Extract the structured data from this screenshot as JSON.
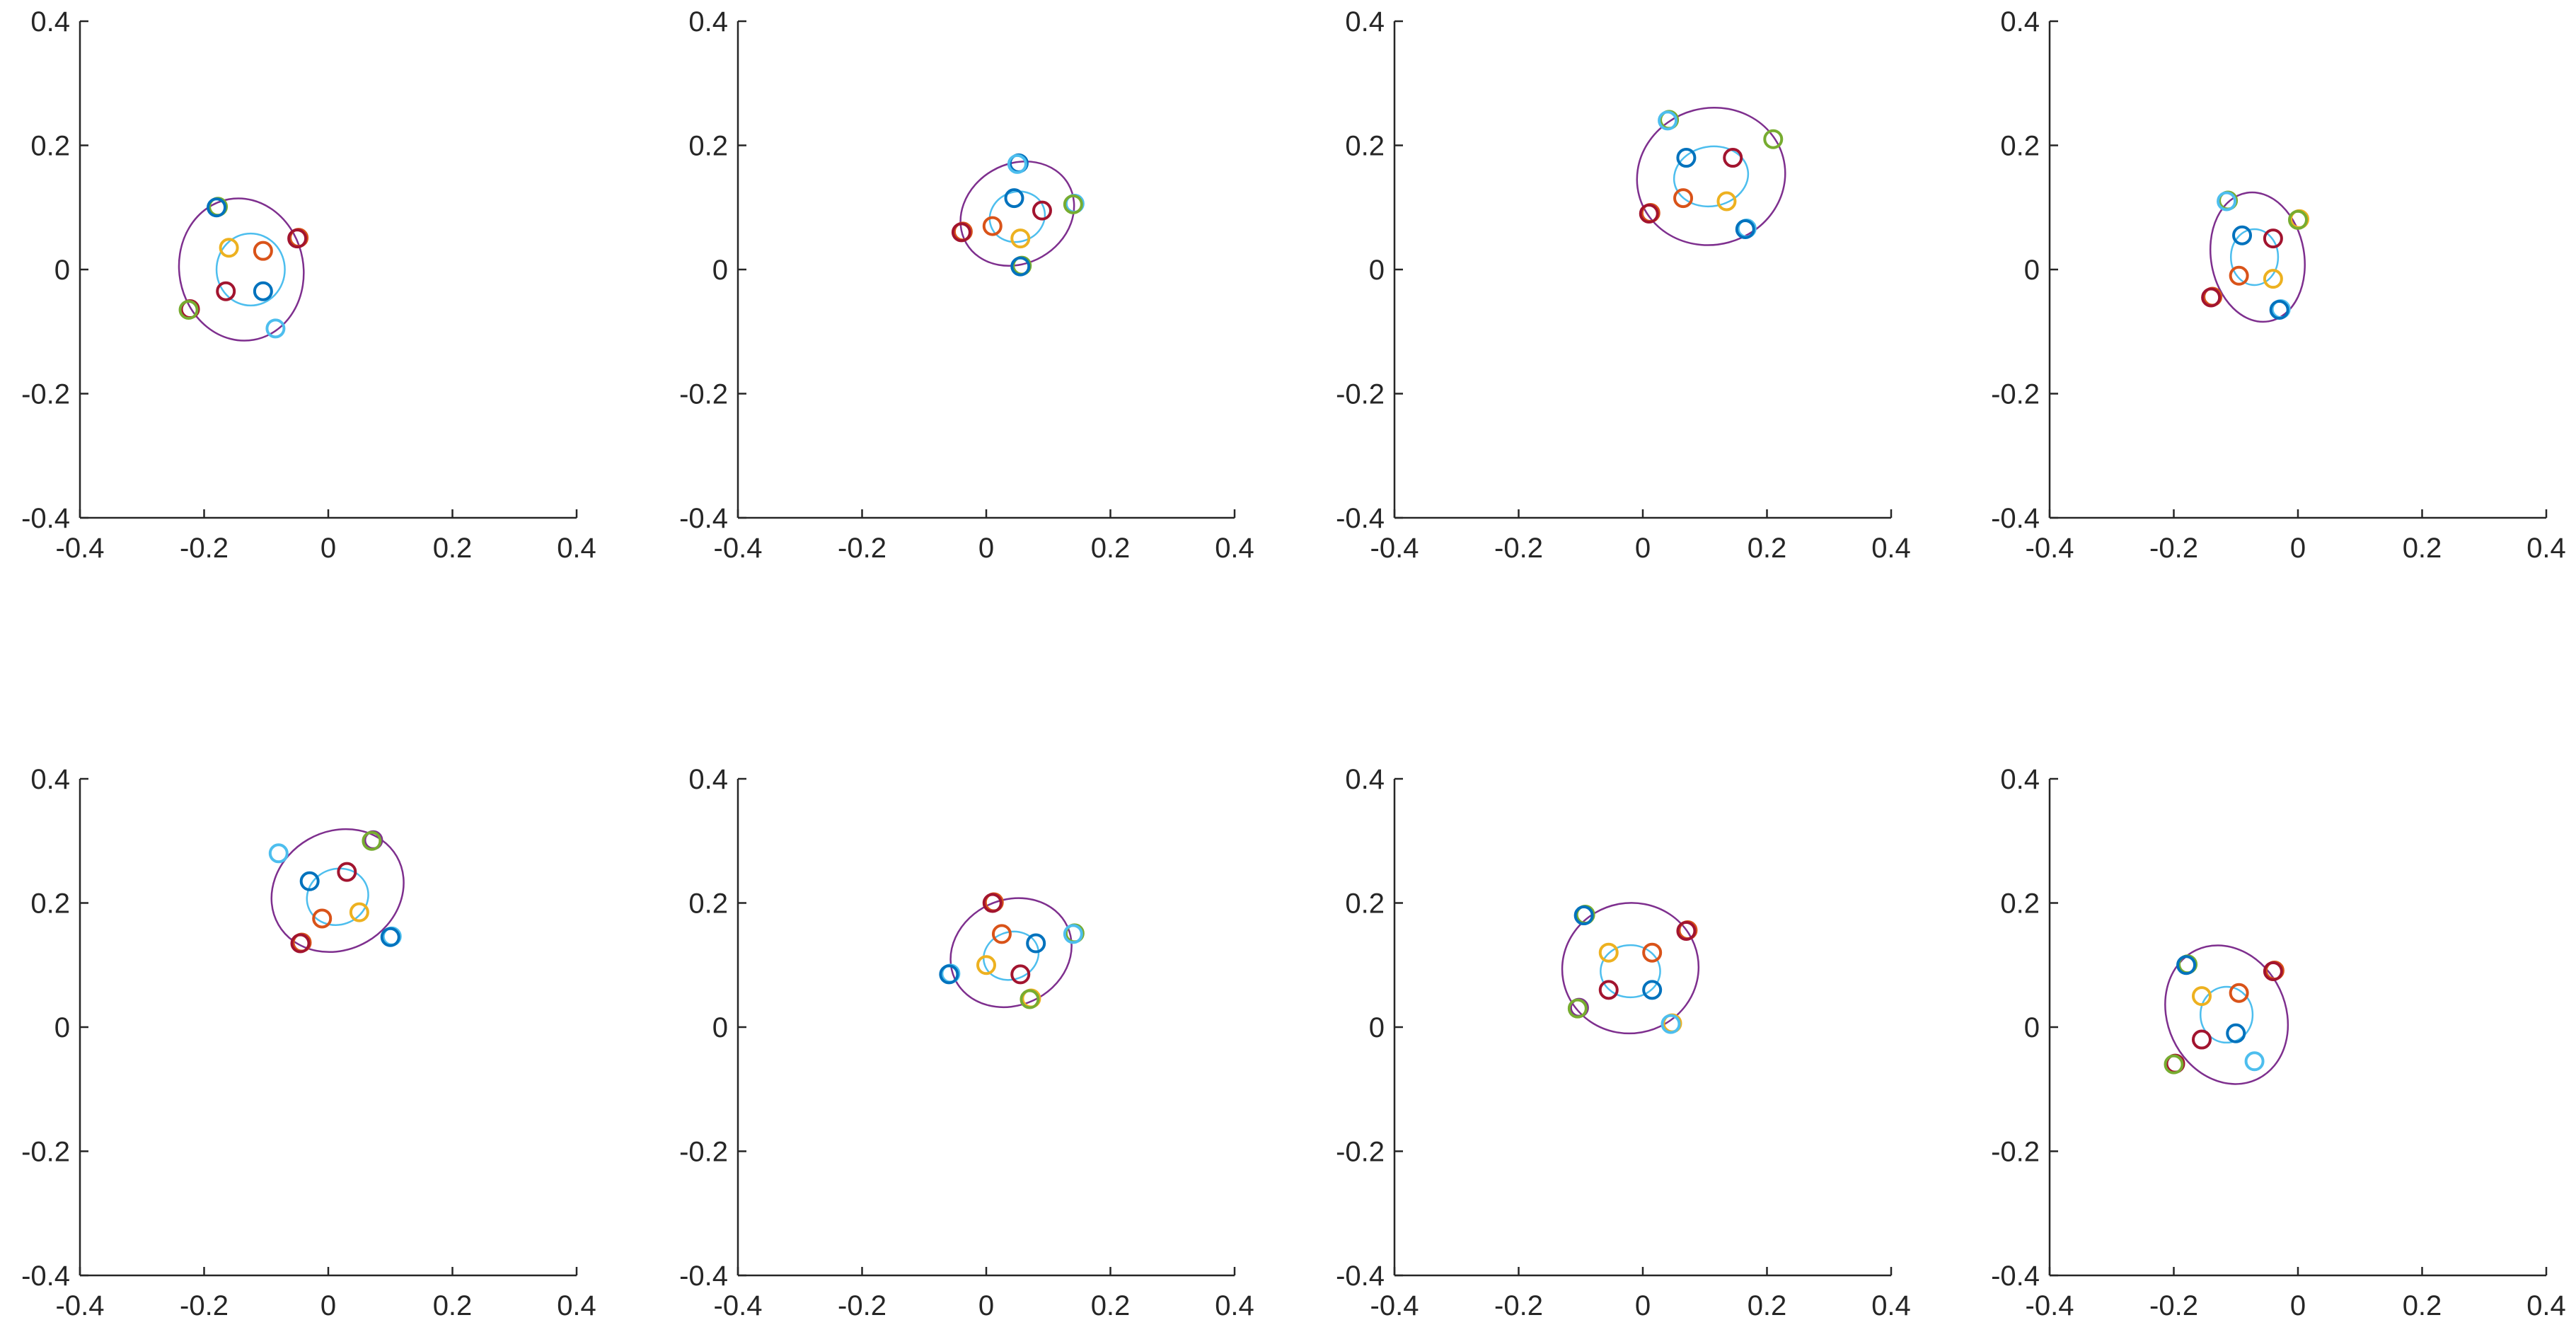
{
  "chart_data": [
    {
      "type": "scatter",
      "title": "",
      "xlabel": "",
      "ylabel": "",
      "xlim": [
        -0.4,
        0.4
      ],
      "ylim": [
        -0.4,
        0.4
      ],
      "xticks": [
        "-0.4",
        "-0.2",
        "0",
        "0.2",
        "0.4"
      ],
      "yticks": [
        "-0.4",
        "-0.2",
        "0",
        "0.2",
        "0.4"
      ],
      "grid": false,
      "ellipses": [
        {
          "cx": -0.14,
          "cy": 0.0,
          "rx": 0.1,
          "ry": 0.115,
          "angle_deg": 10,
          "color": "#7E2F8E"
        },
        {
          "cx": -0.125,
          "cy": 0.0,
          "rx": 0.055,
          "ry": 0.058,
          "angle_deg": 0,
          "color": "#4DBEEE"
        }
      ],
      "markers": [
        {
          "x": -0.18,
          "y": 0.1,
          "color": "#0072BD",
          "color2": "#77AC30"
        },
        {
          "x": -0.05,
          "y": 0.05,
          "color": "#A2142F",
          "color2": "#D95319"
        },
        {
          "x": -0.225,
          "y": -0.065,
          "color": "#77AC30",
          "color2": "#A2142F"
        },
        {
          "x": -0.085,
          "y": -0.095,
          "color": "#4DBEEE"
        },
        {
          "x": -0.16,
          "y": 0.035,
          "color": "#EDB120"
        },
        {
          "x": -0.105,
          "y": 0.03,
          "color": "#D95319"
        },
        {
          "x": -0.165,
          "y": -0.035,
          "color": "#A2142F"
        },
        {
          "x": -0.105,
          "y": -0.035,
          "color": "#0072BD"
        }
      ]
    },
    {
      "type": "scatter",
      "title": "",
      "xlabel": "",
      "ylabel": "",
      "xlim": [
        -0.4,
        0.4
      ],
      "ylim": [
        -0.4,
        0.4
      ],
      "xticks": [
        "-0.4",
        "-0.2",
        "0",
        "0.2",
        "0.4"
      ],
      "yticks": [
        "-0.4",
        "-0.2",
        "0",
        "0.2",
        "0.4"
      ],
      "grid": false,
      "ellipses": [
        {
          "cx": 0.05,
          "cy": 0.09,
          "rx": 0.095,
          "ry": 0.08,
          "angle_deg": 30,
          "color": "#7E2F8E"
        },
        {
          "cx": 0.05,
          "cy": 0.085,
          "rx": 0.045,
          "ry": 0.04,
          "angle_deg": 20,
          "color": "#4DBEEE"
        }
      ],
      "markers": [
        {
          "x": 0.05,
          "y": 0.17,
          "color": "#4DBEEE",
          "color2": "#0072BD"
        },
        {
          "x": 0.14,
          "y": 0.105,
          "color": "#77AC30",
          "color2": "#4DBEEE"
        },
        {
          "x": -0.04,
          "y": 0.06,
          "color": "#A2142F",
          "color2": "#D95319"
        },
        {
          "x": 0.055,
          "y": 0.005,
          "color": "#0072BD",
          "color2": "#77AC30"
        },
        {
          "x": 0.045,
          "y": 0.115,
          "color": "#0072BD"
        },
        {
          "x": 0.09,
          "y": 0.095,
          "color": "#A2142F"
        },
        {
          "x": 0.01,
          "y": 0.07,
          "color": "#D95319"
        },
        {
          "x": 0.055,
          "y": 0.05,
          "color": "#EDB120"
        }
      ]
    },
    {
      "type": "scatter",
      "title": "",
      "xlabel": "",
      "ylabel": "",
      "xlim": [
        -0.4,
        0.4
      ],
      "ylim": [
        -0.4,
        0.4
      ],
      "xticks": [
        "-0.4",
        "-0.2",
        "0",
        "0.2",
        "0.4"
      ],
      "yticks": [
        "-0.4",
        "-0.2",
        "0",
        "0.2",
        "0.4"
      ],
      "grid": false,
      "ellipses": [
        {
          "cx": 0.11,
          "cy": 0.15,
          "rx": 0.12,
          "ry": 0.11,
          "angle_deg": 15,
          "color": "#7E2F8E"
        },
        {
          "cx": 0.11,
          "cy": 0.15,
          "rx": 0.06,
          "ry": 0.048,
          "angle_deg": 10,
          "color": "#4DBEEE"
        }
      ],
      "markers": [
        {
          "x": 0.04,
          "y": 0.24,
          "color": "#4DBEEE",
          "color2": "#77AC30"
        },
        {
          "x": 0.21,
          "y": 0.21,
          "color": "#77AC30"
        },
        {
          "x": 0.01,
          "y": 0.09,
          "color": "#A2142F",
          "color2": "#D95319"
        },
        {
          "x": 0.165,
          "y": 0.065,
          "color": "#0072BD",
          "color2": "#4DBEEE"
        },
        {
          "x": 0.07,
          "y": 0.18,
          "color": "#0072BD"
        },
        {
          "x": 0.145,
          "y": 0.18,
          "color": "#A2142F"
        },
        {
          "x": 0.065,
          "y": 0.115,
          "color": "#D95319"
        },
        {
          "x": 0.135,
          "y": 0.11,
          "color": "#EDB120"
        }
      ]
    },
    {
      "type": "scatter",
      "title": "",
      "xlabel": "",
      "ylabel": "",
      "xlim": [
        -0.4,
        0.4
      ],
      "ylim": [
        -0.4,
        0.4
      ],
      "xticks": [
        "-0.4",
        "-0.2",
        "0",
        "0.2",
        "0.4"
      ],
      "yticks": [
        "-0.4",
        "-0.2",
        "0",
        "0.2",
        "0.4"
      ],
      "grid": false,
      "ellipses": [
        {
          "cx": -0.065,
          "cy": 0.02,
          "rx": 0.075,
          "ry": 0.105,
          "angle_deg": 10,
          "color": "#7E2F8E"
        },
        {
          "cx": -0.07,
          "cy": 0.02,
          "rx": 0.038,
          "ry": 0.045,
          "angle_deg": 0,
          "color": "#4DBEEE"
        }
      ],
      "markers": [
        {
          "x": -0.115,
          "y": 0.11,
          "color": "#4DBEEE",
          "color2": "#77AC30"
        },
        {
          "x": 0.0,
          "y": 0.08,
          "color": "#77AC30",
          "color2": "#EDB120"
        },
        {
          "x": -0.14,
          "y": -0.045,
          "color": "#A2142F",
          "color2": "#D95319"
        },
        {
          "x": -0.03,
          "y": -0.065,
          "color": "#0072BD",
          "color2": "#4DBEEE"
        },
        {
          "x": -0.09,
          "y": 0.055,
          "color": "#0072BD"
        },
        {
          "x": -0.04,
          "y": 0.05,
          "color": "#A2142F"
        },
        {
          "x": -0.095,
          "y": -0.01,
          "color": "#D95319"
        },
        {
          "x": -0.04,
          "y": -0.015,
          "color": "#EDB120"
        }
      ]
    },
    {
      "type": "scatter",
      "title": "",
      "xlabel": "",
      "ylabel": "",
      "xlim": [
        -0.4,
        0.4
      ],
      "ylim": [
        -0.4,
        0.4
      ],
      "xticks": [
        "-0.4",
        "-0.2",
        "0",
        "0.2",
        "0.4"
      ],
      "yticks": [
        "-0.4",
        "-0.2",
        "0",
        "0.2",
        "0.4"
      ],
      "grid": false,
      "ellipses": [
        {
          "cx": 0.015,
          "cy": 0.22,
          "rx": 0.11,
          "ry": 0.095,
          "angle_deg": 30,
          "color": "#7E2F8E"
        },
        {
          "cx": 0.015,
          "cy": 0.21,
          "rx": 0.05,
          "ry": 0.045,
          "angle_deg": 20,
          "color": "#4DBEEE"
        }
      ],
      "markers": [
        {
          "x": -0.08,
          "y": 0.28,
          "color": "#4DBEEE"
        },
        {
          "x": 0.07,
          "y": 0.3,
          "color": "#77AC30",
          "color2": "#7E2F8E"
        },
        {
          "x": -0.045,
          "y": 0.135,
          "color": "#A2142F",
          "color2": "#D95319"
        },
        {
          "x": 0.1,
          "y": 0.145,
          "color": "#0072BD",
          "color2": "#4DBEEE"
        },
        {
          "x": -0.03,
          "y": 0.235,
          "color": "#0072BD"
        },
        {
          "x": 0.03,
          "y": 0.25,
          "color": "#A2142F"
        },
        {
          "x": -0.01,
          "y": 0.175,
          "color": "#D95319"
        },
        {
          "x": 0.05,
          "y": 0.185,
          "color": "#EDB120"
        }
      ]
    },
    {
      "type": "scatter",
      "title": "",
      "xlabel": "",
      "ylabel": "",
      "xlim": [
        -0.4,
        0.4
      ],
      "ylim": [
        -0.4,
        0.4
      ],
      "xticks": [
        "-0.4",
        "-0.2",
        "0",
        "0.2",
        "0.4"
      ],
      "yticks": [
        "-0.4",
        "-0.2",
        "0",
        "0.2",
        "0.4"
      ],
      "grid": false,
      "ellipses": [
        {
          "cx": 0.04,
          "cy": 0.12,
          "rx": 0.1,
          "ry": 0.085,
          "angle_deg": 25,
          "color": "#7E2F8E"
        },
        {
          "cx": 0.04,
          "cy": 0.115,
          "rx": 0.045,
          "ry": 0.038,
          "angle_deg": 20,
          "color": "#4DBEEE"
        }
      ],
      "markers": [
        {
          "x": 0.01,
          "y": 0.2,
          "color": "#A2142F",
          "color2": "#D95319"
        },
        {
          "x": 0.14,
          "y": 0.15,
          "color": "#4DBEEE",
          "color2": "#77AC30"
        },
        {
          "x": -0.06,
          "y": 0.085,
          "color": "#0072BD",
          "color2": "#4DBEEE"
        },
        {
          "x": 0.07,
          "y": 0.045,
          "color": "#77AC30",
          "color2": "#EDB120"
        },
        {
          "x": 0.025,
          "y": 0.15,
          "color": "#D95319"
        },
        {
          "x": 0.08,
          "y": 0.135,
          "color": "#0072BD"
        },
        {
          "x": 0.0,
          "y": 0.1,
          "color": "#EDB120"
        },
        {
          "x": 0.055,
          "y": 0.085,
          "color": "#A2142F"
        }
      ]
    },
    {
      "type": "scatter",
      "title": "",
      "xlabel": "",
      "ylabel": "",
      "xlim": [
        -0.4,
        0.4
      ],
      "ylim": [
        -0.4,
        0.4
      ],
      "xticks": [
        "-0.4",
        "-0.2",
        "0",
        "0.2",
        "0.4"
      ],
      "yticks": [
        "-0.4",
        "-0.2",
        "0",
        "0.2",
        "0.4"
      ],
      "grid": false,
      "ellipses": [
        {
          "cx": -0.02,
          "cy": 0.095,
          "rx": 0.11,
          "ry": 0.105,
          "angle_deg": 10,
          "color": "#7E2F8E"
        },
        {
          "cx": -0.02,
          "cy": 0.09,
          "rx": 0.048,
          "ry": 0.042,
          "angle_deg": 0,
          "color": "#4DBEEE"
        }
      ],
      "markers": [
        {
          "x": -0.095,
          "y": 0.18,
          "color": "#0072BD",
          "color2": "#77AC30"
        },
        {
          "x": 0.07,
          "y": 0.155,
          "color": "#A2142F",
          "color2": "#D95319"
        },
        {
          "x": -0.105,
          "y": 0.03,
          "color": "#77AC30",
          "color2": "#7E2F8E"
        },
        {
          "x": 0.045,
          "y": 0.005,
          "color": "#4DBEEE",
          "color2": "#EDB120"
        },
        {
          "x": -0.055,
          "y": 0.12,
          "color": "#EDB120"
        },
        {
          "x": 0.015,
          "y": 0.12,
          "color": "#D95319"
        },
        {
          "x": -0.055,
          "y": 0.06,
          "color": "#A2142F"
        },
        {
          "x": 0.015,
          "y": 0.06,
          "color": "#0072BD"
        }
      ]
    },
    {
      "type": "scatter",
      "title": "",
      "xlabel": "",
      "ylabel": "",
      "xlim": [
        -0.4,
        0.4
      ],
      "ylim": [
        -0.4,
        0.4
      ],
      "xticks": [
        "-0.4",
        "-0.2",
        "0",
        "0.2",
        "0.4"
      ],
      "yticks": [
        "-0.4",
        "-0.2",
        "0",
        "0.2",
        "0.4"
      ],
      "grid": false,
      "ellipses": [
        {
          "cx": -0.115,
          "cy": 0.02,
          "rx": 0.095,
          "ry": 0.115,
          "angle_deg": 25,
          "color": "#7E2F8E"
        },
        {
          "cx": -0.115,
          "cy": 0.02,
          "rx": 0.042,
          "ry": 0.045,
          "angle_deg": 0,
          "color": "#4DBEEE"
        }
      ],
      "markers": [
        {
          "x": -0.18,
          "y": 0.1,
          "color": "#0072BD",
          "color2": "#77AC30"
        },
        {
          "x": -0.04,
          "y": 0.09,
          "color": "#A2142F",
          "color2": "#D95319"
        },
        {
          "x": -0.2,
          "y": -0.06,
          "color": "#77AC30",
          "color2": "#A2142F"
        },
        {
          "x": -0.07,
          "y": -0.055,
          "color": "#4DBEEE"
        },
        {
          "x": -0.155,
          "y": 0.05,
          "color": "#EDB120"
        },
        {
          "x": -0.095,
          "y": 0.055,
          "color": "#D95319"
        },
        {
          "x": -0.155,
          "y": -0.02,
          "color": "#A2142F"
        },
        {
          "x": -0.1,
          "y": -0.01,
          "color": "#0072BD"
        }
      ]
    }
  ]
}
